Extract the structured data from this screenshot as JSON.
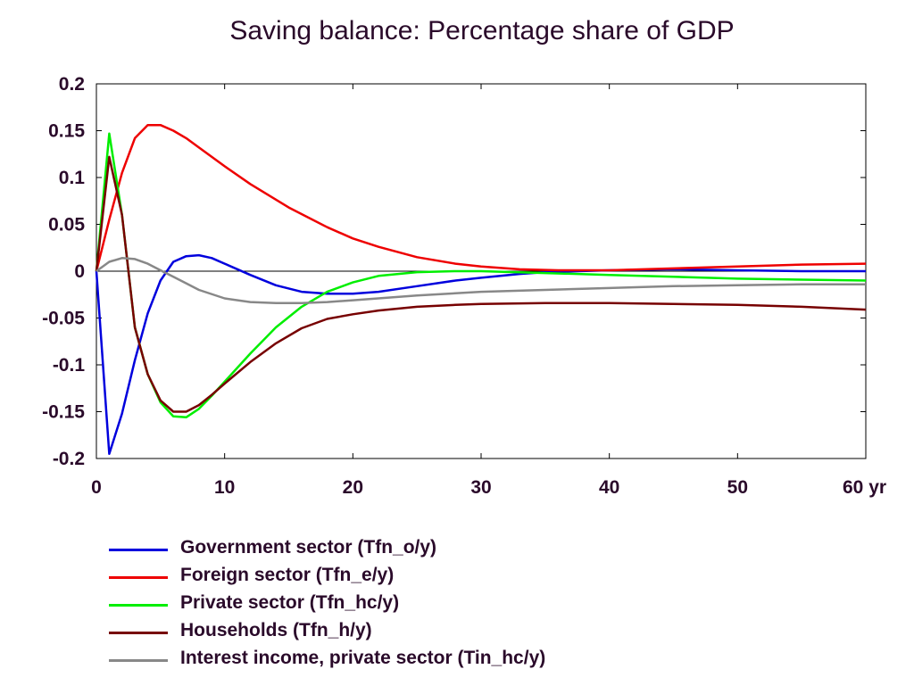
{
  "chart_data": {
    "type": "line",
    "title": "Saving balance: Percentage share of GDP",
    "xlabel": "",
    "ylabel": "",
    "xlim": [
      0,
      60
    ],
    "ylim": [
      -0.2,
      0.2
    ],
    "x_ticks": [
      {
        "value": 0,
        "label": "0"
      },
      {
        "value": 10,
        "label": "10"
      },
      {
        "value": 20,
        "label": "20"
      },
      {
        "value": 30,
        "label": "30"
      },
      {
        "value": 40,
        "label": "40"
      },
      {
        "value": 50,
        "label": "50"
      },
      {
        "value": 60,
        "label": "60 yr"
      }
    ],
    "y_ticks": [
      {
        "value": 0.2,
        "label": "0.2"
      },
      {
        "value": 0.15,
        "label": "0.15"
      },
      {
        "value": 0.1,
        "label": "0.1"
      },
      {
        "value": 0.05,
        "label": "0.05"
      },
      {
        "value": 0,
        "label": "0"
      },
      {
        "value": -0.05,
        "label": "-0.05"
      },
      {
        "value": -0.1,
        "label": "-0.1"
      },
      {
        "value": -0.15,
        "label": "-0.15"
      },
      {
        "value": -0.2,
        "label": "-0.2"
      }
    ],
    "zero_line": true,
    "grid": false,
    "legend_position": "bottom-left",
    "series": [
      {
        "name": "Government sector (Tfn_o/y)",
        "color": "#0000dd",
        "x": [
          0,
          1,
          2,
          3,
          4,
          5,
          6,
          7,
          8,
          9,
          10,
          12,
          14,
          16,
          18,
          20,
          22,
          25,
          28,
          30,
          33,
          35,
          40,
          45,
          50,
          55,
          60
        ],
        "y": [
          0,
          -0.195,
          -0.152,
          -0.095,
          -0.045,
          -0.01,
          0.01,
          0.016,
          0.017,
          0.014,
          0.008,
          -0.004,
          -0.015,
          -0.022,
          -0.024,
          -0.024,
          -0.022,
          -0.016,
          -0.01,
          -0.007,
          -0.003,
          -0.001,
          0.001,
          0.002,
          0.001,
          0.0,
          0.0
        ]
      },
      {
        "name": "Foreign sector (Tfn_e/y)",
        "color": "#ee0000",
        "x": [
          0,
          1,
          2,
          3,
          4,
          5,
          6,
          7,
          8,
          10,
          12,
          15,
          18,
          20,
          22,
          25,
          28,
          30,
          33,
          36,
          40,
          45,
          50,
          55,
          60
        ],
        "y": [
          0,
          0.055,
          0.105,
          0.142,
          0.156,
          0.156,
          0.15,
          0.142,
          0.132,
          0.112,
          0.093,
          0.068,
          0.047,
          0.035,
          0.026,
          0.015,
          0.008,
          0.005,
          0.002,
          0.001,
          0.001,
          0.003,
          0.005,
          0.007,
          0.008
        ]
      },
      {
        "name": "Private sector (Tfn_hc/y)",
        "color": "#00ee00",
        "x": [
          0,
          1,
          2,
          3,
          4,
          5,
          6,
          7,
          8,
          9,
          10,
          12,
          14,
          16,
          18,
          20,
          22,
          25,
          28,
          30,
          35,
          40,
          45,
          50,
          55,
          60
        ],
        "y": [
          0,
          0.147,
          0.06,
          -0.06,
          -0.11,
          -0.14,
          -0.155,
          -0.156,
          -0.147,
          -0.133,
          -0.118,
          -0.088,
          -0.06,
          -0.038,
          -0.022,
          -0.012,
          -0.005,
          -0.001,
          0.0,
          0.0,
          -0.002,
          -0.004,
          -0.006,
          -0.008,
          -0.009,
          -0.01
        ]
      },
      {
        "name": "Households (Tfn_h/y)",
        "color": "#770000",
        "x": [
          0,
          1,
          2,
          3,
          4,
          5,
          6,
          7,
          8,
          9,
          10,
          12,
          14,
          16,
          18,
          20,
          22,
          25,
          28,
          30,
          35,
          40,
          45,
          50,
          55,
          60
        ],
        "y": [
          0,
          0.122,
          0.06,
          -0.06,
          -0.11,
          -0.138,
          -0.15,
          -0.15,
          -0.143,
          -0.132,
          -0.12,
          -0.097,
          -0.077,
          -0.061,
          -0.051,
          -0.046,
          -0.042,
          -0.038,
          -0.036,
          -0.035,
          -0.034,
          -0.034,
          -0.035,
          -0.036,
          -0.038,
          -0.041
        ]
      },
      {
        "name": "Interest income, private sector (Tin_hc/y)",
        "color": "#888888",
        "x": [
          0,
          1,
          2,
          3,
          4,
          5,
          6,
          7,
          8,
          10,
          12,
          14,
          16,
          18,
          20,
          25,
          30,
          35,
          40,
          45,
          50,
          55,
          60
        ],
        "y": [
          0,
          0.01,
          0.014,
          0.013,
          0.008,
          0.001,
          -0.006,
          -0.013,
          -0.02,
          -0.029,
          -0.033,
          -0.034,
          -0.034,
          -0.033,
          -0.031,
          -0.026,
          -0.022,
          -0.02,
          -0.018,
          -0.016,
          -0.015,
          -0.014,
          -0.014
        ]
      }
    ]
  }
}
